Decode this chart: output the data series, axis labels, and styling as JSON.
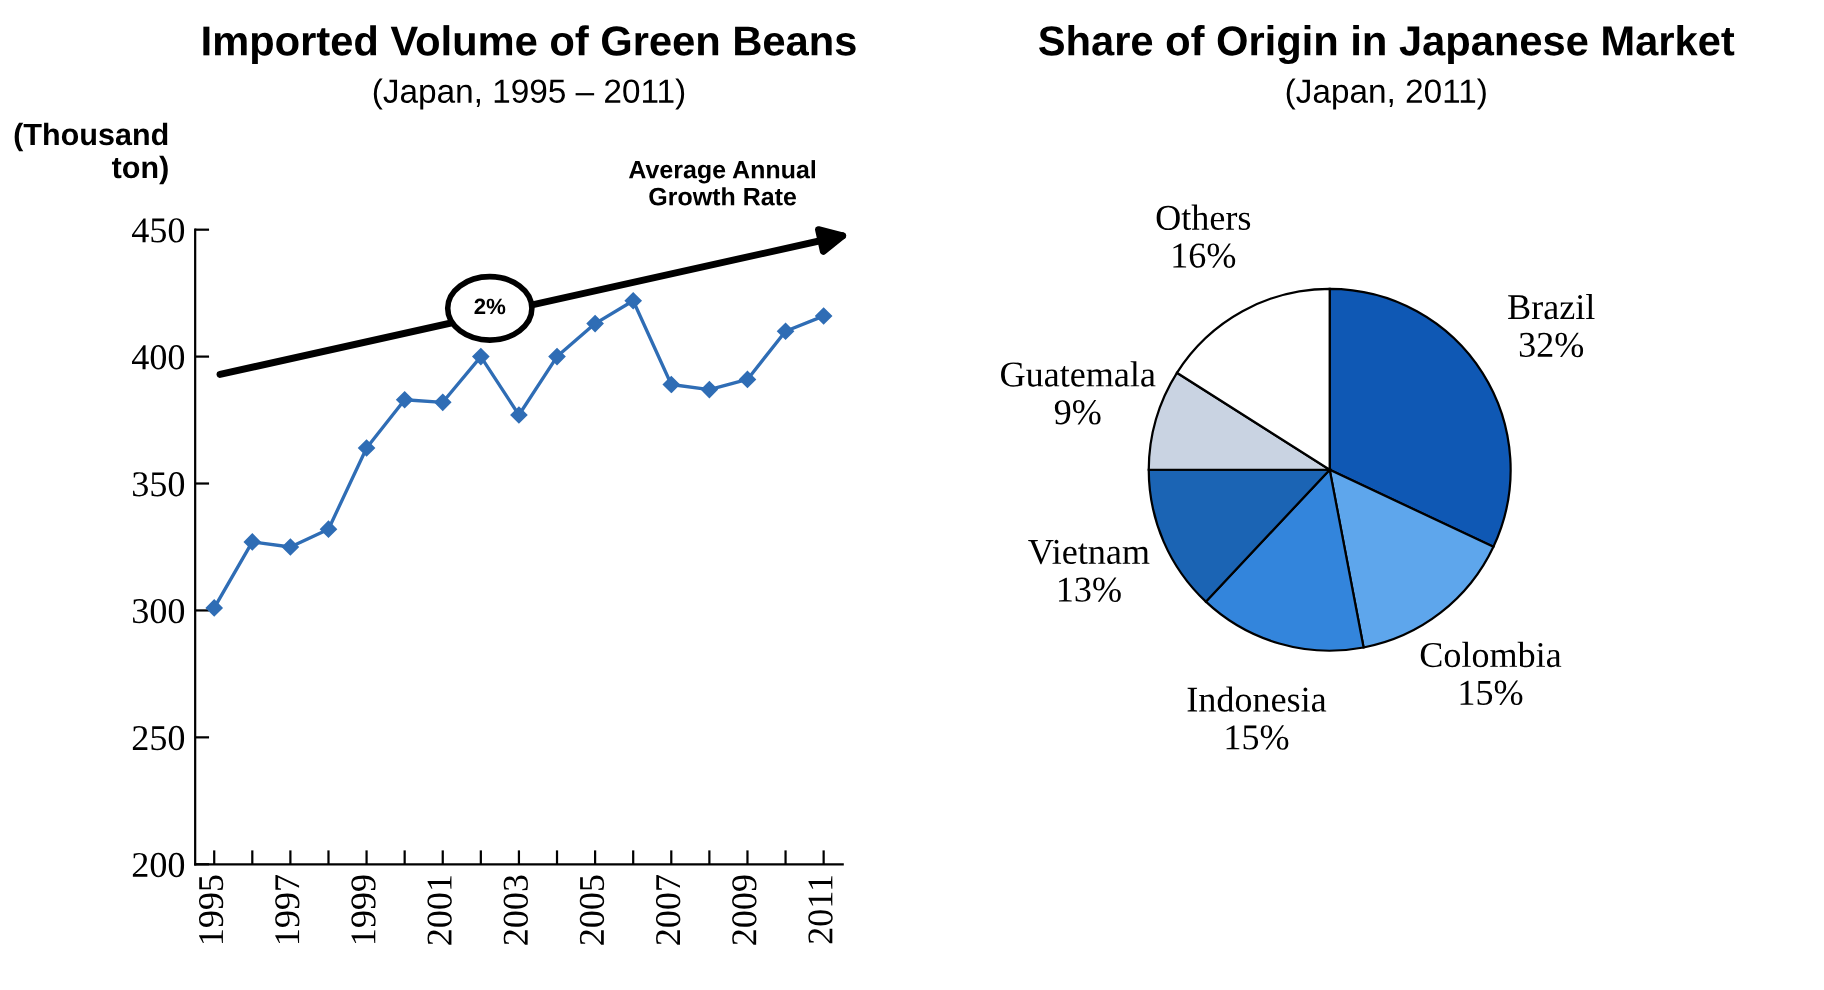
{
  "chart_data": [
    {
      "type": "line",
      "title": "Imported Volume of Green Beans",
      "subtitle": "(Japan, 1995 – 2011)",
      "ylabel": "(Thousand\nton)",
      "x": [
        1995,
        1996,
        1997,
        1998,
        1999,
        2000,
        2001,
        2002,
        2003,
        2004,
        2005,
        2006,
        2007,
        2008,
        2009,
        2010,
        2011
      ],
      "series": [
        {
          "color": "#2f6db5",
          "values": [
            301,
            327,
            325,
            332,
            364,
            383,
            382,
            400,
            377,
            400,
            413,
            422,
            389,
            387,
            391,
            410,
            416
          ]
        }
      ],
      "xlim": [
        1994.5,
        2011.5
      ],
      "ylim": [
        200,
        450
      ],
      "yticks": [
        200,
        250,
        300,
        350,
        400,
        450
      ],
      "xticks": [
        1995,
        {
          "value": 1996,
          "label": null
        },
        1997,
        {
          "value": 1998,
          "label": null
        },
        1999,
        {
          "value": 2000,
          "label": null
        },
        2001,
        {
          "value": 2002,
          "label": null
        },
        2003,
        {
          "value": 2004,
          "label": null
        },
        2005,
        {
          "value": 2006,
          "label": null
        },
        2007,
        {
          "value": 2008,
          "label": null
        },
        2009,
        {
          "value": 2010,
          "label": null
        },
        2011
      ],
      "marker": "diamond",
      "grid": false,
      "annotations": [
        "2%",
        "Average Annual\nGrowth Rate"
      ]
    },
    {
      "type": "pie",
      "title": "Share of Origin in Japanese Market",
      "subtitle": "(Japan, 2011)",
      "categories": [
        "Brazil",
        "Colombia",
        "Indonesia",
        "Vietnam",
        "Guatemala",
        "Others"
      ],
      "values": [
        32,
        15,
        15,
        13,
        9,
        16
      ],
      "value_labels": [
        "32%",
        "15%",
        "15%",
        "13%",
        "9%",
        "16%"
      ],
      "colors": [
        "#0f58b4",
        "#5ea6ec",
        "#3385dc",
        "#1b64b4",
        "#c9d3e2",
        "#ffffff"
      ]
    }
  ]
}
